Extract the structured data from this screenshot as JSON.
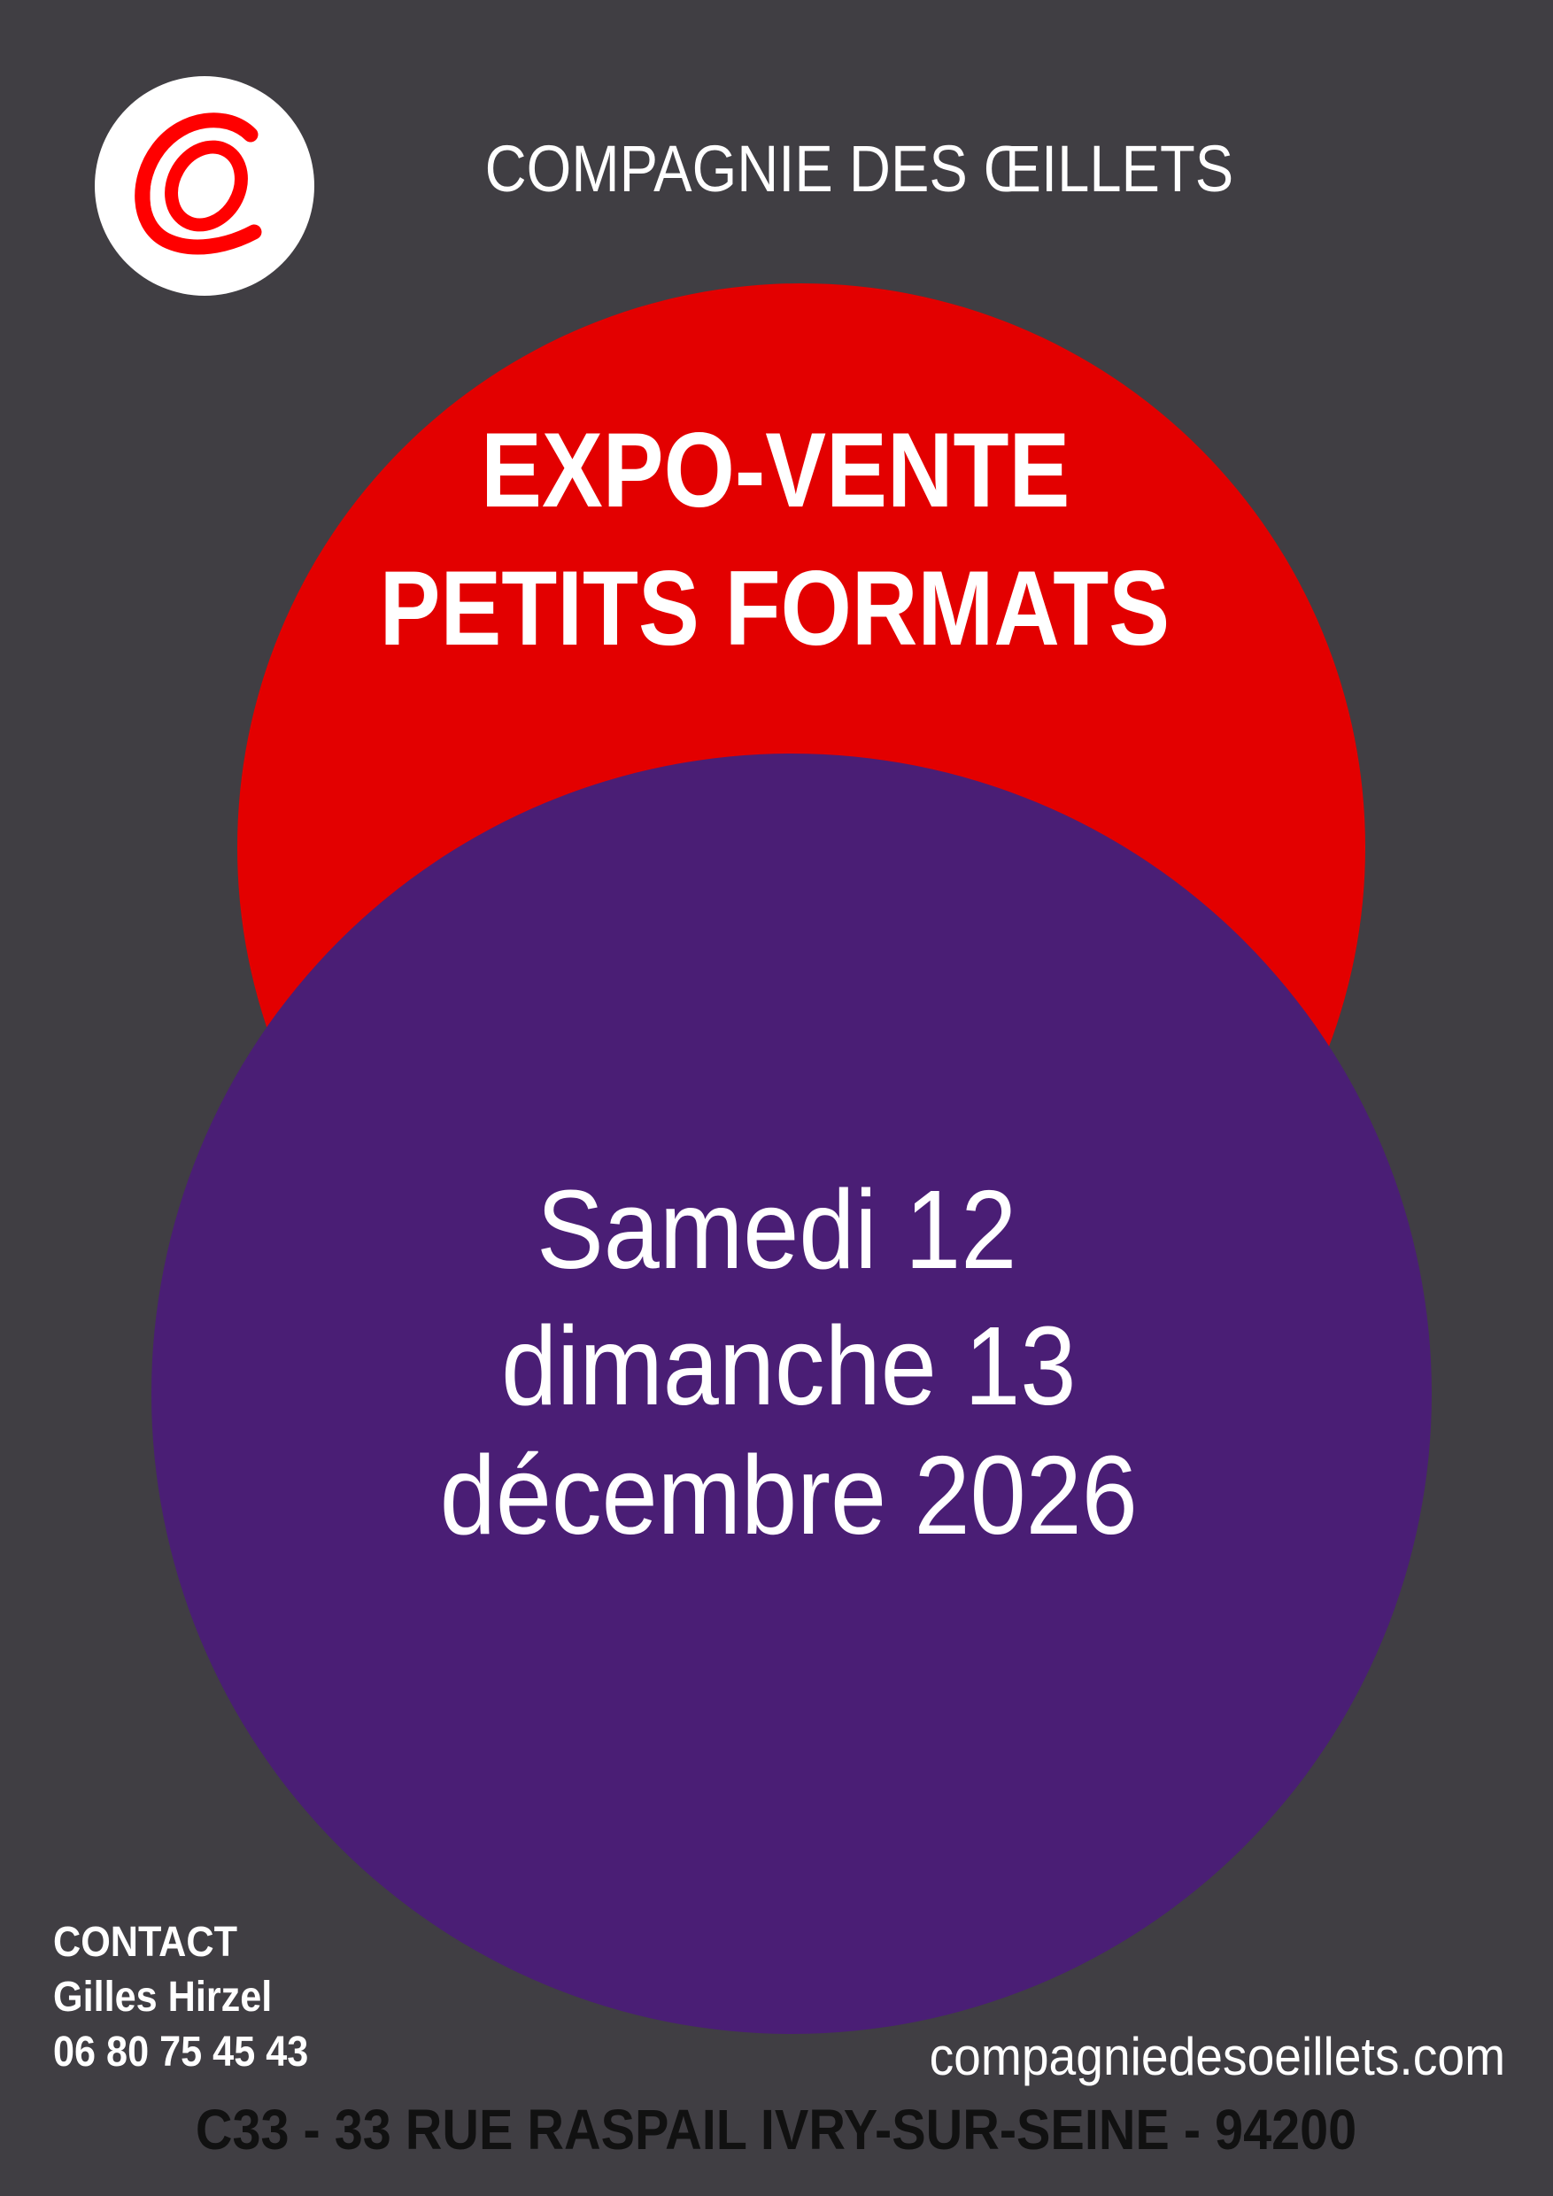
{
  "colors": {
    "background": "#403e43",
    "red_circle": "#e30000",
    "purple_circle": "#4a1e75",
    "logo_red": "#ff0000"
  },
  "header": {
    "logo_icon": "brush-stroke-o-logo",
    "company_name": "COMPAGNIE DES ŒILLETS"
  },
  "event": {
    "title_line1": "EXPO-VENTE",
    "title_line2": "PETITS FORMATS"
  },
  "dates": {
    "line1": "Samedi 12",
    "line2": "dimanche 13",
    "line3": "décembre 2026"
  },
  "contact": {
    "heading": "CONTACT",
    "name": "Gilles Hirzel",
    "phone": "06 80 75 45 43"
  },
  "website": "compagniedesoeillets.com",
  "address": "C33 - 33 RUE RASPAIL IVRY-SUR-SEINE - 94200"
}
